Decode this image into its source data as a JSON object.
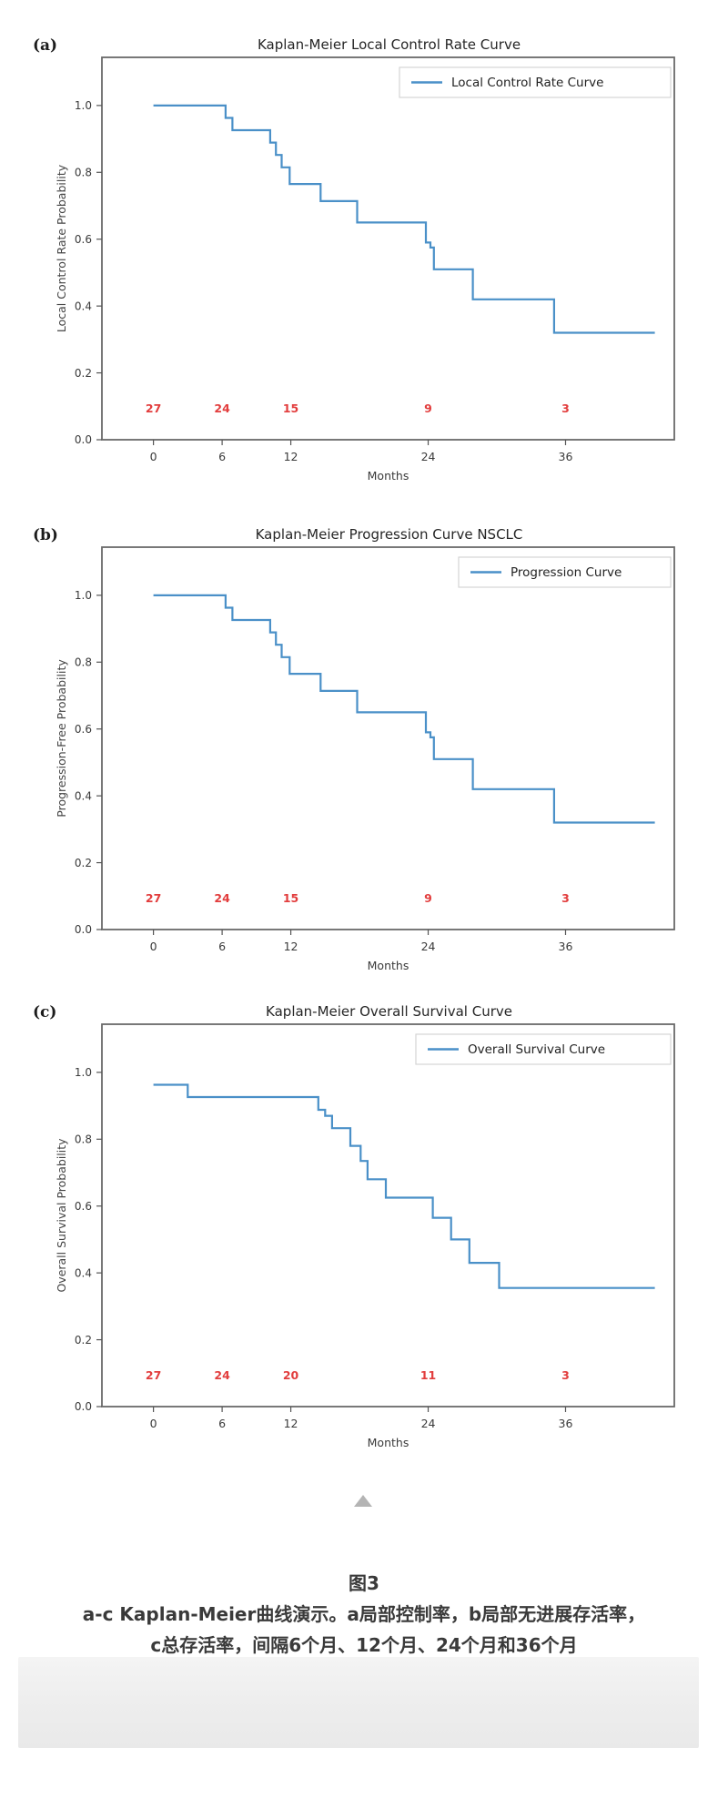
{
  "caption": {
    "label": "图3",
    "line1": "a-c Kaplan-Meier曲线演示。a局部控制率，b局部无进展存活率，",
    "line2": "c总存活率，间隔6个月、12个月、24个月和36个月"
  },
  "colors": {
    "curve_blue": "#4a90c8",
    "at_risk_red": "#e23d3d",
    "spine_gray": "#6a6a6a",
    "footer_gray": "#ededed",
    "scroll_icon_gray": "#b4b4b4"
  },
  "chart_data": [
    {
      "type": "line",
      "subtype": "kaplan-meier-step",
      "panel": "(a)",
      "title": "Kaplan-Meier Local Control Rate Curve",
      "legend": "Local Control Rate Curve",
      "xlabel": "Months",
      "ylabel": "Local Control Rate Probability",
      "xticks": [
        0,
        6,
        12,
        24,
        36
      ],
      "yticks": [
        0.0,
        0.2,
        0.4,
        0.6,
        0.8,
        1.0
      ],
      "xlim": [
        -4.5,
        45.5
      ],
      "ylim": [
        0,
        1.144
      ],
      "grid": false,
      "legend_position": "upper right",
      "line_color": "#4a90c8",
      "steps": [
        [
          0,
          1.0
        ],
        [
          6.3,
          1.0
        ],
        [
          6.3,
          0.963
        ],
        [
          6.9,
          0.963
        ],
        [
          6.9,
          0.926
        ],
        [
          10.2,
          0.926
        ],
        [
          10.2,
          0.889
        ],
        [
          10.7,
          0.889
        ],
        [
          10.7,
          0.852
        ],
        [
          11.2,
          0.852
        ],
        [
          11.2,
          0.815
        ],
        [
          11.9,
          0.815
        ],
        [
          11.9,
          0.765
        ],
        [
          14.6,
          0.765
        ],
        [
          14.6,
          0.714
        ],
        [
          17.8,
          0.714
        ],
        [
          17.8,
          0.65
        ],
        [
          23.8,
          0.65
        ],
        [
          23.8,
          0.59
        ],
        [
          24.2,
          0.59
        ],
        [
          24.2,
          0.575
        ],
        [
          24.5,
          0.575
        ],
        [
          24.5,
          0.51
        ],
        [
          27.9,
          0.51
        ],
        [
          27.9,
          0.42
        ],
        [
          35.0,
          0.42
        ],
        [
          35.0,
          0.32
        ],
        [
          43.8,
          0.32
        ]
      ],
      "at_risk": {
        "x": [
          0,
          6,
          12,
          24,
          36
        ],
        "values": [
          27,
          24,
          15,
          9,
          3
        ],
        "y": 0.082,
        "color": "#e23d3d"
      }
    },
    {
      "type": "line",
      "subtype": "kaplan-meier-step",
      "panel": "(b)",
      "title": "Kaplan-Meier Progression Curve NSCLC",
      "legend": "Progression Curve",
      "xlabel": "Months",
      "ylabel": "Progression-Free Probability",
      "xticks": [
        0,
        6,
        12,
        24,
        36
      ],
      "yticks": [
        0.0,
        0.2,
        0.4,
        0.6,
        0.8,
        1.0
      ],
      "xlim": [
        -4.5,
        45.5
      ],
      "ylim": [
        0,
        1.144
      ],
      "grid": false,
      "legend_position": "upper right",
      "line_color": "#4a90c8",
      "steps": [
        [
          0,
          1.0
        ],
        [
          6.3,
          1.0
        ],
        [
          6.3,
          0.963
        ],
        [
          6.9,
          0.963
        ],
        [
          6.9,
          0.926
        ],
        [
          10.2,
          0.926
        ],
        [
          10.2,
          0.889
        ],
        [
          10.7,
          0.889
        ],
        [
          10.7,
          0.852
        ],
        [
          11.2,
          0.852
        ],
        [
          11.2,
          0.815
        ],
        [
          11.9,
          0.815
        ],
        [
          11.9,
          0.765
        ],
        [
          14.6,
          0.765
        ],
        [
          14.6,
          0.714
        ],
        [
          17.8,
          0.714
        ],
        [
          17.8,
          0.65
        ],
        [
          23.8,
          0.65
        ],
        [
          23.8,
          0.59
        ],
        [
          24.2,
          0.59
        ],
        [
          24.2,
          0.575
        ],
        [
          24.5,
          0.575
        ],
        [
          24.5,
          0.51
        ],
        [
          27.9,
          0.51
        ],
        [
          27.9,
          0.42
        ],
        [
          35.0,
          0.42
        ],
        [
          35.0,
          0.32
        ],
        [
          43.8,
          0.32
        ]
      ],
      "at_risk": {
        "x": [
          0,
          6,
          12,
          24,
          36
        ],
        "values": [
          27,
          24,
          15,
          9,
          3
        ],
        "y": 0.082,
        "color": "#e23d3d"
      }
    },
    {
      "type": "line",
      "subtype": "kaplan-meier-step",
      "panel": "(c)",
      "title": "Kaplan-Meier Overall Survival Curve",
      "legend": "Overall Survival Curve",
      "xlabel": "Months",
      "ylabel": "Overall Survival Probability",
      "xticks": [
        0,
        6,
        12,
        24,
        36
      ],
      "yticks": [
        0.0,
        0.2,
        0.4,
        0.6,
        0.8,
        1.0
      ],
      "xlim": [
        -4.5,
        45.5
      ],
      "ylim": [
        0,
        1.144
      ],
      "grid": false,
      "legend_position": "upper right",
      "line_color": "#4a90c8",
      "steps": [
        [
          0,
          0.963
        ],
        [
          3.0,
          0.963
        ],
        [
          3.0,
          0.926
        ],
        [
          14.4,
          0.926
        ],
        [
          14.4,
          0.888
        ],
        [
          15.0,
          0.888
        ],
        [
          15.0,
          0.87
        ],
        [
          15.6,
          0.87
        ],
        [
          15.6,
          0.833
        ],
        [
          17.2,
          0.833
        ],
        [
          17.2,
          0.78
        ],
        [
          18.1,
          0.78
        ],
        [
          18.1,
          0.735
        ],
        [
          18.7,
          0.735
        ],
        [
          18.7,
          0.68
        ],
        [
          20.3,
          0.68
        ],
        [
          20.3,
          0.625
        ],
        [
          24.4,
          0.625
        ],
        [
          24.4,
          0.565
        ],
        [
          26.0,
          0.565
        ],
        [
          26.0,
          0.5
        ],
        [
          27.6,
          0.5
        ],
        [
          27.6,
          0.43
        ],
        [
          30.2,
          0.43
        ],
        [
          30.2,
          0.355
        ],
        [
          43.8,
          0.355
        ]
      ],
      "at_risk": {
        "x": [
          0,
          6,
          12,
          24,
          36
        ],
        "values": [
          27,
          24,
          20,
          11,
          3
        ],
        "y": 0.082,
        "color": "#e23d3d"
      }
    }
  ]
}
